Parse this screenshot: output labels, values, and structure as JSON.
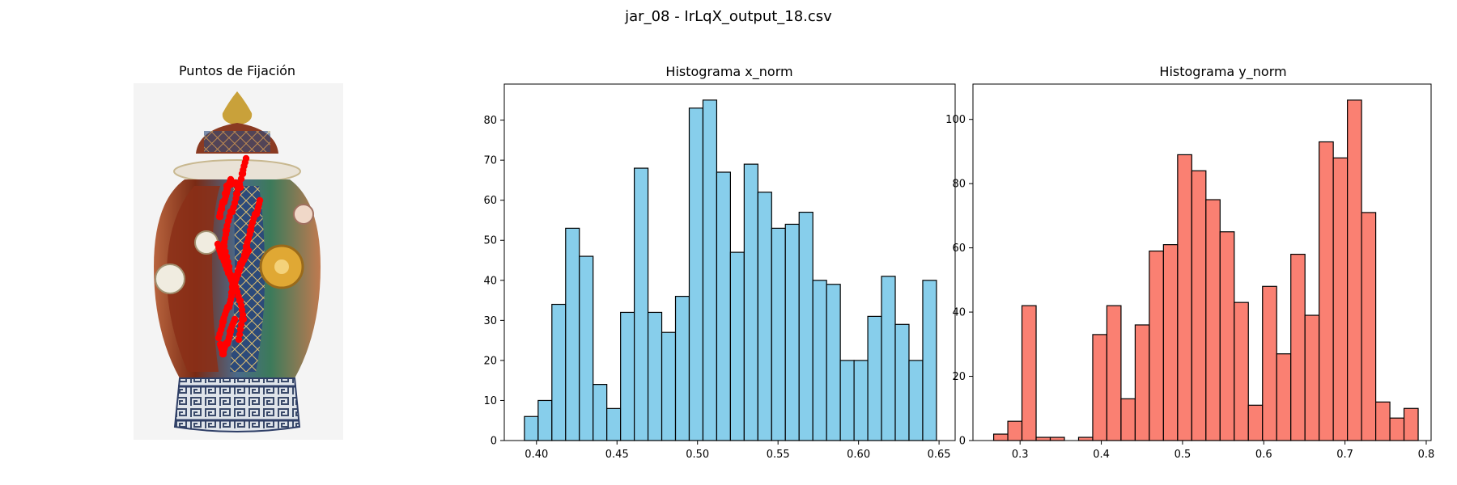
{
  "figure": {
    "suptitle": "jar_08 - IrLqX_output_18.csv"
  },
  "image_panel": {
    "title": "Puntos de Fijación",
    "image_subject": "ornate-porcelain-ginger-jar",
    "fixation_color": "#ff0000"
  },
  "chart_data": [
    {
      "type": "bar",
      "title": "Histograma x_norm",
      "xlabel": "",
      "ylabel": "",
      "bar_color": "#87ceeb",
      "edge_color": "#000000",
      "xlim": [
        0.38,
        0.66
      ],
      "ylim": [
        0,
        89
      ],
      "xticks": [
        "0.40",
        "0.45",
        "0.50",
        "0.55",
        "0.60",
        "0.65"
      ],
      "yticks": [
        "0",
        "10",
        "20",
        "30",
        "40",
        "50",
        "60",
        "70",
        "80"
      ],
      "bin_start": 0.3925,
      "bin_width": 0.00853,
      "values": [
        6,
        10,
        34,
        53,
        46,
        14,
        8,
        32,
        68,
        32,
        27,
        36,
        83,
        85,
        67,
        47,
        69,
        62,
        53,
        54,
        57,
        40,
        39,
        20,
        20,
        31,
        41,
        29,
        20,
        40
      ]
    },
    {
      "type": "bar",
      "title": "Histograma y_norm",
      "xlabel": "",
      "ylabel": "",
      "bar_color": "#fa8072",
      "edge_color": "#000000",
      "xlim": [
        0.242,
        0.806
      ],
      "ylim": [
        0,
        111
      ],
      "xticks": [
        "0.3",
        "0.4",
        "0.5",
        "0.6",
        "0.7",
        "0.8"
      ],
      "yticks": [
        "0",
        "20",
        "40",
        "60",
        "80",
        "100"
      ],
      "bin_start": 0.2675,
      "bin_width": 0.01742,
      "values": [
        2,
        6,
        42,
        1,
        1,
        0,
        1,
        33,
        42,
        13,
        36,
        59,
        61,
        89,
        84,
        75,
        65,
        43,
        11,
        48,
        27,
        58,
        39,
        93,
        88,
        106,
        71,
        12,
        7,
        10
      ]
    }
  ]
}
